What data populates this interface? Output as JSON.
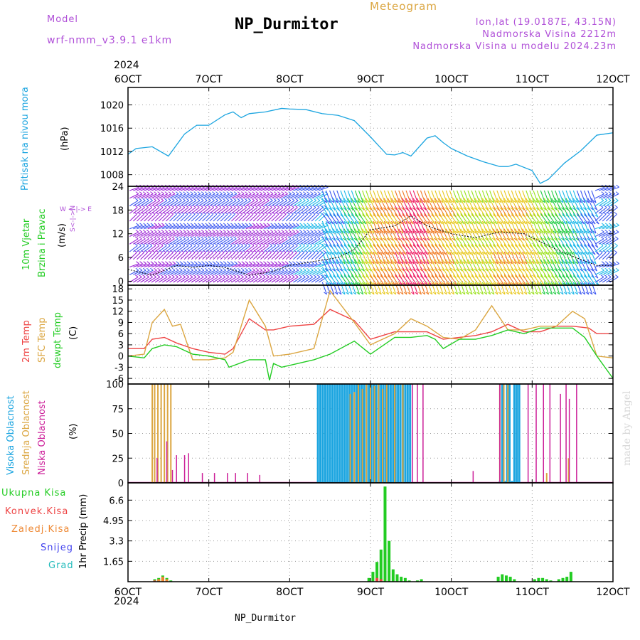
{
  "header": {
    "model_label": "Model",
    "model_name": "wrf-nmm_v3.9.1 e1km",
    "meteogram_label": "Meteogram",
    "title": "NP_Durmitor",
    "lonlat": "lon,lat (19.0187E, 43.15N)",
    "altitude": "Nadmorska Visina 2212m",
    "model_altitude": "Nadmorska Visina u modelu 2024.23m",
    "year_top": "2024",
    "year_bottom": "2024",
    "footer": "NP_Durmitor",
    "credit": "made by Angel"
  },
  "colors": {
    "pressure": "#1ca5e0",
    "t2m": "#ee4444",
    "sfc": "#dba641",
    "dewpt": "#22cc22",
    "high_cloud": "#1ca5e0",
    "mid_cloud": "#dba641",
    "low_cloud": "#cc1f99",
    "total_precip": "#22cc22",
    "conv_precip": "#ee4444",
    "frozen_precip": "#ee8833",
    "snow": "#4444ee",
    "graupel": "#22bbbb",
    "purple": "#b050d8"
  },
  "axis_labels": {
    "pressure": [
      "Pritisak na nivou mora",
      "(hPa)"
    ],
    "wind": [
      "10m Vjetar",
      "Brzina i Pravac",
      "(m/s)"
    ],
    "wind_dir": "W  <-|->  E",
    "wind_dir2": "S<-|->N",
    "temp": [
      "2m Temp",
      "SFC Temp",
      "dewpt Temp",
      "(C)"
    ],
    "cloud": [
      "Visoka Oblacnost",
      "Srednja Oblacnost",
      "Niska Oblacnost",
      "(%)"
    ],
    "precip_unit": "1hr Precip (mm)",
    "precip_legend": [
      "Ukupna Kisa",
      "Konvek.Kisa",
      "Zaledj.Kisa",
      "Snijeg",
      "Grad"
    ]
  },
  "chart_data": {
    "type": "line",
    "x_ticks": [
      "6OCT",
      "7OCT",
      "8OCT",
      "9OCT",
      "10OCT",
      "11OCT",
      "12OCT"
    ],
    "x_range_days": [
      6,
      12
    ],
    "pressure": {
      "name": "Pritisak na nivou mora",
      "unit": "hPa",
      "ylim": [
        1006,
        1023
      ],
      "y_ticks": [
        1008,
        1012,
        1016,
        1020
      ],
      "x": [
        6.0,
        6.1,
        6.3,
        6.5,
        6.7,
        6.85,
        7.0,
        7.2,
        7.3,
        7.4,
        7.5,
        7.7,
        7.9,
        8.0,
        8.2,
        8.4,
        8.6,
        8.8,
        9.0,
        9.1,
        9.2,
        9.3,
        9.4,
        9.5,
        9.7,
        9.8,
        9.9,
        10.0,
        10.2,
        10.4,
        10.6,
        10.7,
        10.8,
        11.0,
        11.1,
        11.2,
        11.4,
        11.6,
        11.8,
        12.0
      ],
      "y": [
        1011.5,
        1012.5,
        1012.8,
        1011.2,
        1015,
        1016.5,
        1016.5,
        1018.3,
        1018.8,
        1017.8,
        1018.5,
        1018.8,
        1019.4,
        1019.3,
        1019.2,
        1018.5,
        1018.2,
        1017.3,
        1014.5,
        1013,
        1011.5,
        1011.4,
        1011.8,
        1011.2,
        1014.3,
        1014.7,
        1013.5,
        1012.5,
        1011.2,
        1010.2,
        1009.4,
        1009.4,
        1009.8,
        1008.7,
        1006.5,
        1007.2,
        1010,
        1012.1,
        1014.8,
        1015.2
      ]
    },
    "wind": {
      "name": "10m Vjetar",
      "unit": "m/s",
      "ylim": [
        -1,
        24
      ],
      "y_ticks": [
        0,
        6,
        12,
        18,
        24
      ],
      "x": [
        6.0,
        6.3,
        6.6,
        6.8,
        7.0,
        7.2,
        7.5,
        7.8,
        8.0,
        8.3,
        8.6,
        8.8,
        9.0,
        9.3,
        9.5,
        9.7,
        10.0,
        10.3,
        10.6,
        10.9,
        11.1,
        11.3,
        11.6,
        11.8,
        12.0
      ],
      "speed": [
        3,
        1.5,
        4,
        3.5,
        4,
        3.5,
        1.5,
        2.5,
        4,
        5,
        6,
        8,
        13,
        14,
        16.5,
        14,
        12,
        11,
        12.5,
        12,
        10,
        8,
        5.5,
        4,
        4
      ]
    },
    "temperature": {
      "unit": "C",
      "ylim": [
        -7.5,
        19
      ],
      "y_ticks": [
        -6,
        -3,
        0,
        3,
        6,
        9,
        12,
        15,
        18
      ],
      "series": [
        {
          "name": "2m Temp",
          "x": [
            6.0,
            6.2,
            6.3,
            6.45,
            6.6,
            6.8,
            7.0,
            7.2,
            7.3,
            7.5,
            7.7,
            7.8,
            8.0,
            8.3,
            8.5,
            8.8,
            9.0,
            9.3,
            9.5,
            9.7,
            9.9,
            10.1,
            10.3,
            10.5,
            10.7,
            10.9,
            11.1,
            11.3,
            11.5,
            11.7,
            11.8,
            12.0
          ],
          "y": [
            2,
            2,
            4.5,
            5,
            3.5,
            2,
            1,
            0.5,
            2,
            10,
            7,
            7,
            8,
            8.5,
            12.5,
            9.5,
            4.5,
            6.5,
            6.5,
            6.5,
            4.5,
            5,
            5.5,
            6.5,
            8.5,
            6.5,
            6.5,
            8,
            8,
            7.5,
            6,
            6
          ]
        },
        {
          "name": "SFC Temp",
          "x": [
            6.0,
            6.2,
            6.3,
            6.45,
            6.55,
            6.65,
            6.8,
            7.0,
            7.2,
            7.3,
            7.5,
            7.7,
            7.8,
            8.0,
            8.3,
            8.5,
            8.8,
            9.0,
            9.3,
            9.5,
            9.7,
            9.9,
            10.1,
            10.3,
            10.5,
            10.7,
            10.9,
            11.1,
            11.3,
            11.5,
            11.65,
            11.8,
            12.0
          ],
          "y": [
            0,
            0.5,
            9,
            12.5,
            8,
            8.5,
            -1,
            -1,
            -0.5,
            1,
            15,
            8,
            0,
            0.5,
            2,
            17.5,
            9,
            3,
            6,
            10,
            8,
            5,
            4.5,
            7,
            13.5,
            7,
            7,
            8,
            8,
            12,
            10,
            0,
            -0.5
          ]
        },
        {
          "name": "dewpt Temp",
          "x": [
            6.0,
            6.2,
            6.3,
            6.45,
            6.6,
            6.8,
            7.0,
            7.2,
            7.25,
            7.5,
            7.7,
            7.75,
            7.8,
            7.9,
            8.1,
            8.3,
            8.5,
            8.8,
            9.0,
            9.3,
            9.5,
            9.7,
            9.8,
            9.9,
            10.1,
            10.3,
            10.5,
            10.7,
            10.9,
            11.1,
            11.3,
            11.5,
            11.65,
            11.8,
            12.0
          ],
          "y": [
            0,
            -0.5,
            2,
            3,
            2.5,
            0.5,
            0,
            -1,
            -3,
            -1,
            -1,
            -6.5,
            -2,
            -3,
            -2,
            -1,
            0.5,
            4,
            0.5,
            5,
            5,
            5.5,
            4.5,
            2,
            4.5,
            4.5,
            5.5,
            7,
            6,
            7.5,
            7.5,
            7.5,
            5,
            0,
            -6
          ]
        }
      ]
    },
    "cloud": {
      "unit": "%",
      "ylim": [
        0,
        100
      ],
      "y_ticks": [
        0,
        25,
        50,
        75,
        100
      ],
      "series": [
        {
          "name": "Visoka Oblacnost",
          "x": [
            8.35,
            8.38,
            8.41,
            8.44,
            8.47,
            8.5,
            8.53,
            8.56,
            8.59,
            8.62,
            8.65,
            8.68,
            8.71,
            8.74,
            8.77,
            8.8,
            8.83,
            8.86,
            8.89,
            8.92,
            8.95,
            8.98,
            9.01,
            9.04,
            9.07,
            9.1,
            9.13,
            9.16,
            9.19,
            9.22,
            9.25,
            9.28,
            9.31,
            9.34,
            9.37,
            9.4,
            9.43,
            9.46,
            9.49,
            10.6,
            10.63,
            10.66,
            10.69,
            10.72,
            10.75,
            10.78,
            10.81,
            10.84
          ],
          "y": [
            100,
            100,
            100,
            100,
            100,
            100,
            100,
            100,
            100,
            100,
            100,
            100,
            100,
            100,
            100,
            100,
            100,
            100,
            100,
            100,
            100,
            100,
            100,
            100,
            100,
            100,
            100,
            100,
            100,
            100,
            100,
            100,
            100,
            100,
            100,
            100,
            100,
            100,
            100,
            2,
            100,
            2,
            100,
            100,
            2,
            100,
            100,
            100
          ]
        },
        {
          "name": "Srednja Oblacnost",
          "x": [
            6.3,
            6.33,
            6.37,
            6.41,
            6.45,
            6.49,
            6.53,
            8.75,
            8.8,
            8.85,
            8.9,
            8.95,
            9.0,
            9.05,
            9.1,
            9.15,
            9.2,
            9.3,
            9.4,
            10.6,
            10.65,
            10.7,
            11.18,
            11.45
          ],
          "y": [
            100,
            100,
            100,
            100,
            100,
            100,
            100,
            90,
            92,
            100,
            95,
            100,
            100,
            98,
            100,
            95,
            100,
            100,
            100,
            100,
            100,
            100,
            10,
            25
          ]
        },
        {
          "name": "Niska Oblacnost",
          "x": [
            6.36,
            6.48,
            6.55,
            6.6,
            6.7,
            6.75,
            6.92,
            7.07,
            7.23,
            7.33,
            7.48,
            7.63,
            9.52,
            9.58,
            9.65,
            10.27,
            10.6,
            10.95,
            11.05,
            11.14,
            11.22,
            11.35,
            11.42,
            11.46,
            11.55
          ],
          "y": [
            25,
            42,
            13,
            28,
            28,
            30,
            10,
            10,
            10,
            10,
            10,
            8,
            100,
            100,
            100,
            12,
            100,
            100,
            100,
            100,
            100,
            90,
            100,
            85,
            100
          ]
        }
      ]
    },
    "precip": {
      "unit": "mm",
      "ylim": [
        0,
        8
      ],
      "y_ticks": [
        1.65,
        3.3,
        4.95,
        6.6
      ],
      "series": [
        {
          "name": "Ukupna Kisa",
          "x": [
            6.33,
            6.38,
            6.43,
            6.48,
            6.53,
            8.98,
            9.03,
            9.08,
            9.13,
            9.18,
            9.23,
            9.28,
            9.33,
            9.38,
            9.43,
            9.48,
            9.58,
            9.63,
            10.58,
            10.63,
            10.68,
            10.73,
            10.78,
            11.03,
            11.08,
            11.13,
            11.18,
            11.23,
            11.33,
            11.38,
            11.43,
            11.48
          ],
          "y": [
            0.2,
            0.3,
            0.5,
            0.3,
            0.1,
            0.3,
            0.8,
            1.6,
            2.6,
            7.7,
            3.3,
            1,
            0.6,
            0.4,
            0.3,
            0.1,
            0.1,
            0.2,
            0.4,
            0.6,
            0.5,
            0.4,
            0.2,
            0.2,
            0.3,
            0.3,
            0.2,
            0.1,
            0.2,
            0.3,
            0.4,
            0.8
          ]
        },
        {
          "name": "Konvek.Kisa",
          "x": [
            6.33,
            6.43,
            9.08,
            9.13
          ],
          "y": [
            0.1,
            0.3,
            0.3,
            0.2
          ]
        },
        {
          "name": "Zaledj.Kisa",
          "x": [
            6.38,
            6.43,
            6.48
          ],
          "y": [
            0.2,
            0.4,
            0.2
          ]
        },
        {
          "name": "Snijeg",
          "x": [],
          "y": []
        },
        {
          "name": "Grad",
          "x": [],
          "y": []
        }
      ]
    }
  }
}
